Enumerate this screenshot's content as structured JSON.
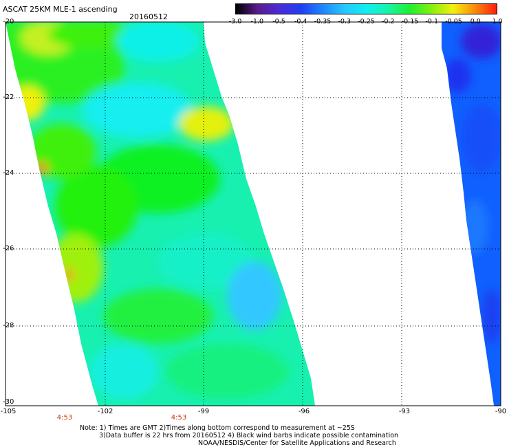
{
  "header": {
    "title": "ASCAT 25KM MLE-1 ascending",
    "date": "20160512"
  },
  "colorbar": {
    "labels": [
      "-3.0",
      "-1.0",
      "-0.5",
      "-0.4",
      "-0.35",
      "-0.3",
      "-0.25",
      "-0.2",
      "-0.15",
      "-0.1",
      "-0.05",
      "0.0",
      "1.0"
    ],
    "colors": [
      "#000000",
      "#5a1b8c",
      "#4a2cd8",
      "#1f3ff0",
      "#1f86ff",
      "#27c6ff",
      "#12eef0",
      "#16f4a8",
      "#1ef030",
      "#84f010",
      "#f4f00c",
      "#f88a0c",
      "#ff1e0c"
    ]
  },
  "axes": {
    "y_ticks": [
      "-20",
      "-22",
      "-24",
      "-26",
      "-28",
      "-30"
    ],
    "x_ticks": [
      "-105",
      "-102",
      "-99",
      "-96",
      "-93",
      "-90"
    ],
    "times": [
      "4:53",
      "4:53"
    ]
  },
  "notes": {
    "line1": "Note: 1) Times are GMT 2)Times along bottom correspond to measurement at ~25S",
    "line2": "3)Data buffer is 22 hrs from 20160512 4) Black wind barbs indicate possible contamination",
    "line3": "NOAA/NESDIS/Center for Satellite Applications and Research"
  }
}
